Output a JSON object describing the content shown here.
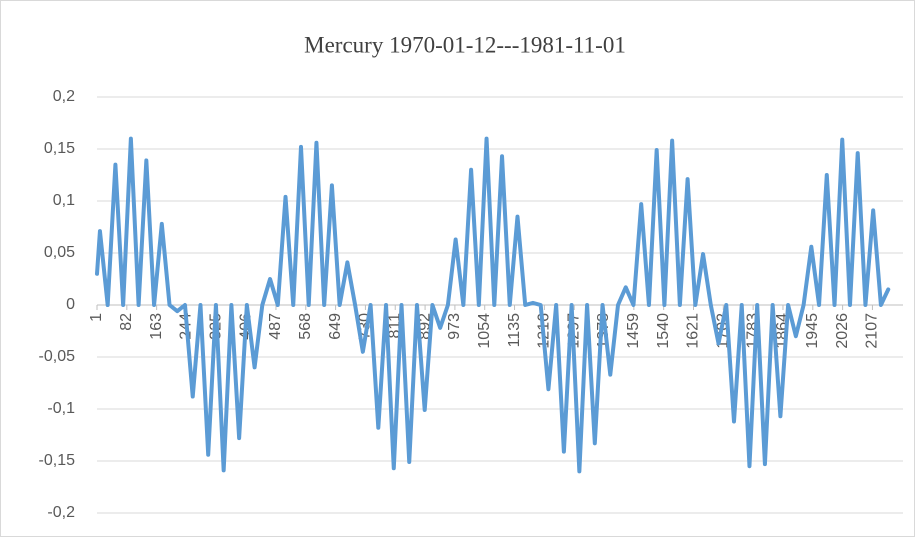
{
  "chart_data": {
    "type": "line",
    "title": "Mercury 1970-01-12---1981-11-01",
    "x": [
      1,
      9,
      30,
      51,
      72,
      93,
      114,
      135,
      156,
      177,
      198,
      219,
      240,
      261,
      282,
      303,
      324,
      345,
      366,
      387,
      408,
      429,
      450,
      471,
      492,
      513,
      534,
      555,
      576,
      597,
      618,
      639,
      660,
      681,
      702,
      723,
      744,
      765,
      786,
      807,
      828,
      849,
      870,
      891,
      912,
      933,
      954,
      975,
      996,
      1017,
      1038,
      1059,
      1080,
      1101,
      1122,
      1143,
      1164,
      1185,
      1206,
      1227,
      1248,
      1269,
      1290,
      1311,
      1332,
      1353,
      1374,
      1395,
      1416,
      1437,
      1458,
      1479,
      1500,
      1521,
      1542,
      1563,
      1584,
      1605,
      1626,
      1647,
      1668,
      1689,
      1710,
      1731,
      1752,
      1773,
      1794,
      1815,
      1836,
      1857,
      1878,
      1899,
      1920,
      1941,
      1962,
      1983,
      2004,
      2025,
      2046,
      2067,
      2088,
      2109,
      2130,
      2150
    ],
    "series": [
      {
        "color": "#5b9bd5",
        "values": [
          0.03,
          0.071,
          0,
          0.135,
          0,
          0.16,
          0,
          0.139,
          0,
          0.078,
          0,
          -0.006,
          0,
          -0.088,
          0,
          -0.144,
          0,
          -0.159,
          0,
          -0.128,
          0,
          -0.06,
          0,
          0.025,
          0,
          0.104,
          0,
          0.152,
          0,
          0.156,
          0,
          0.115,
          0,
          0.041,
          0,
          -0.045,
          0,
          -0.118,
          0,
          -0.157,
          0,
          -0.151,
          0,
          -0.101,
          0,
          -0.022,
          0,
          0.063,
          0,
          0.13,
          0,
          0.16,
          0,
          0.143,
          0,
          0.085,
          0,
          0.002,
          0,
          -0.081,
          0,
          -0.141,
          0,
          -0.16,
          0,
          -0.133,
          0,
          -0.067,
          0,
          0.017,
          0,
          0.097,
          0,
          0.149,
          0,
          0.158,
          0,
          0.121,
          0,
          0.049,
          0,
          -0.037,
          0,
          -0.112,
          0,
          -0.155,
          0,
          -0.153,
          0,
          -0.107,
          0,
          -0.03,
          0,
          0.056,
          0,
          0.125,
          0,
          0.159,
          0,
          0.146,
          0,
          0.091,
          0,
          0.015
        ]
      }
    ],
    "xlim": [
      1,
      2190
    ],
    "xticks": [
      1,
      82,
      163,
      244,
      325,
      406,
      487,
      568,
      649,
      730,
      811,
      892,
      973,
      1054,
      1135,
      1216,
      1297,
      1378,
      1459,
      1540,
      1621,
      1702,
      1783,
      1864,
      1945,
      2026,
      2107
    ],
    "ylim": [
      -0.2,
      0.2
    ],
    "yticks": [
      {
        "value": -0.2,
        "label": "-0,2"
      },
      {
        "value": -0.15,
        "label": "-0,15"
      },
      {
        "value": -0.1,
        "label": "-0,1"
      },
      {
        "value": -0.05,
        "label": "-0,05"
      },
      0,
      {
        "value": 0.05,
        "label": "0,05"
      },
      {
        "value": 0.1,
        "label": "0,1"
      },
      {
        "value": 0.15,
        "label": "0,15"
      },
      {
        "value": 0.2,
        "label": "0,2"
      }
    ],
    "grid": true
  }
}
